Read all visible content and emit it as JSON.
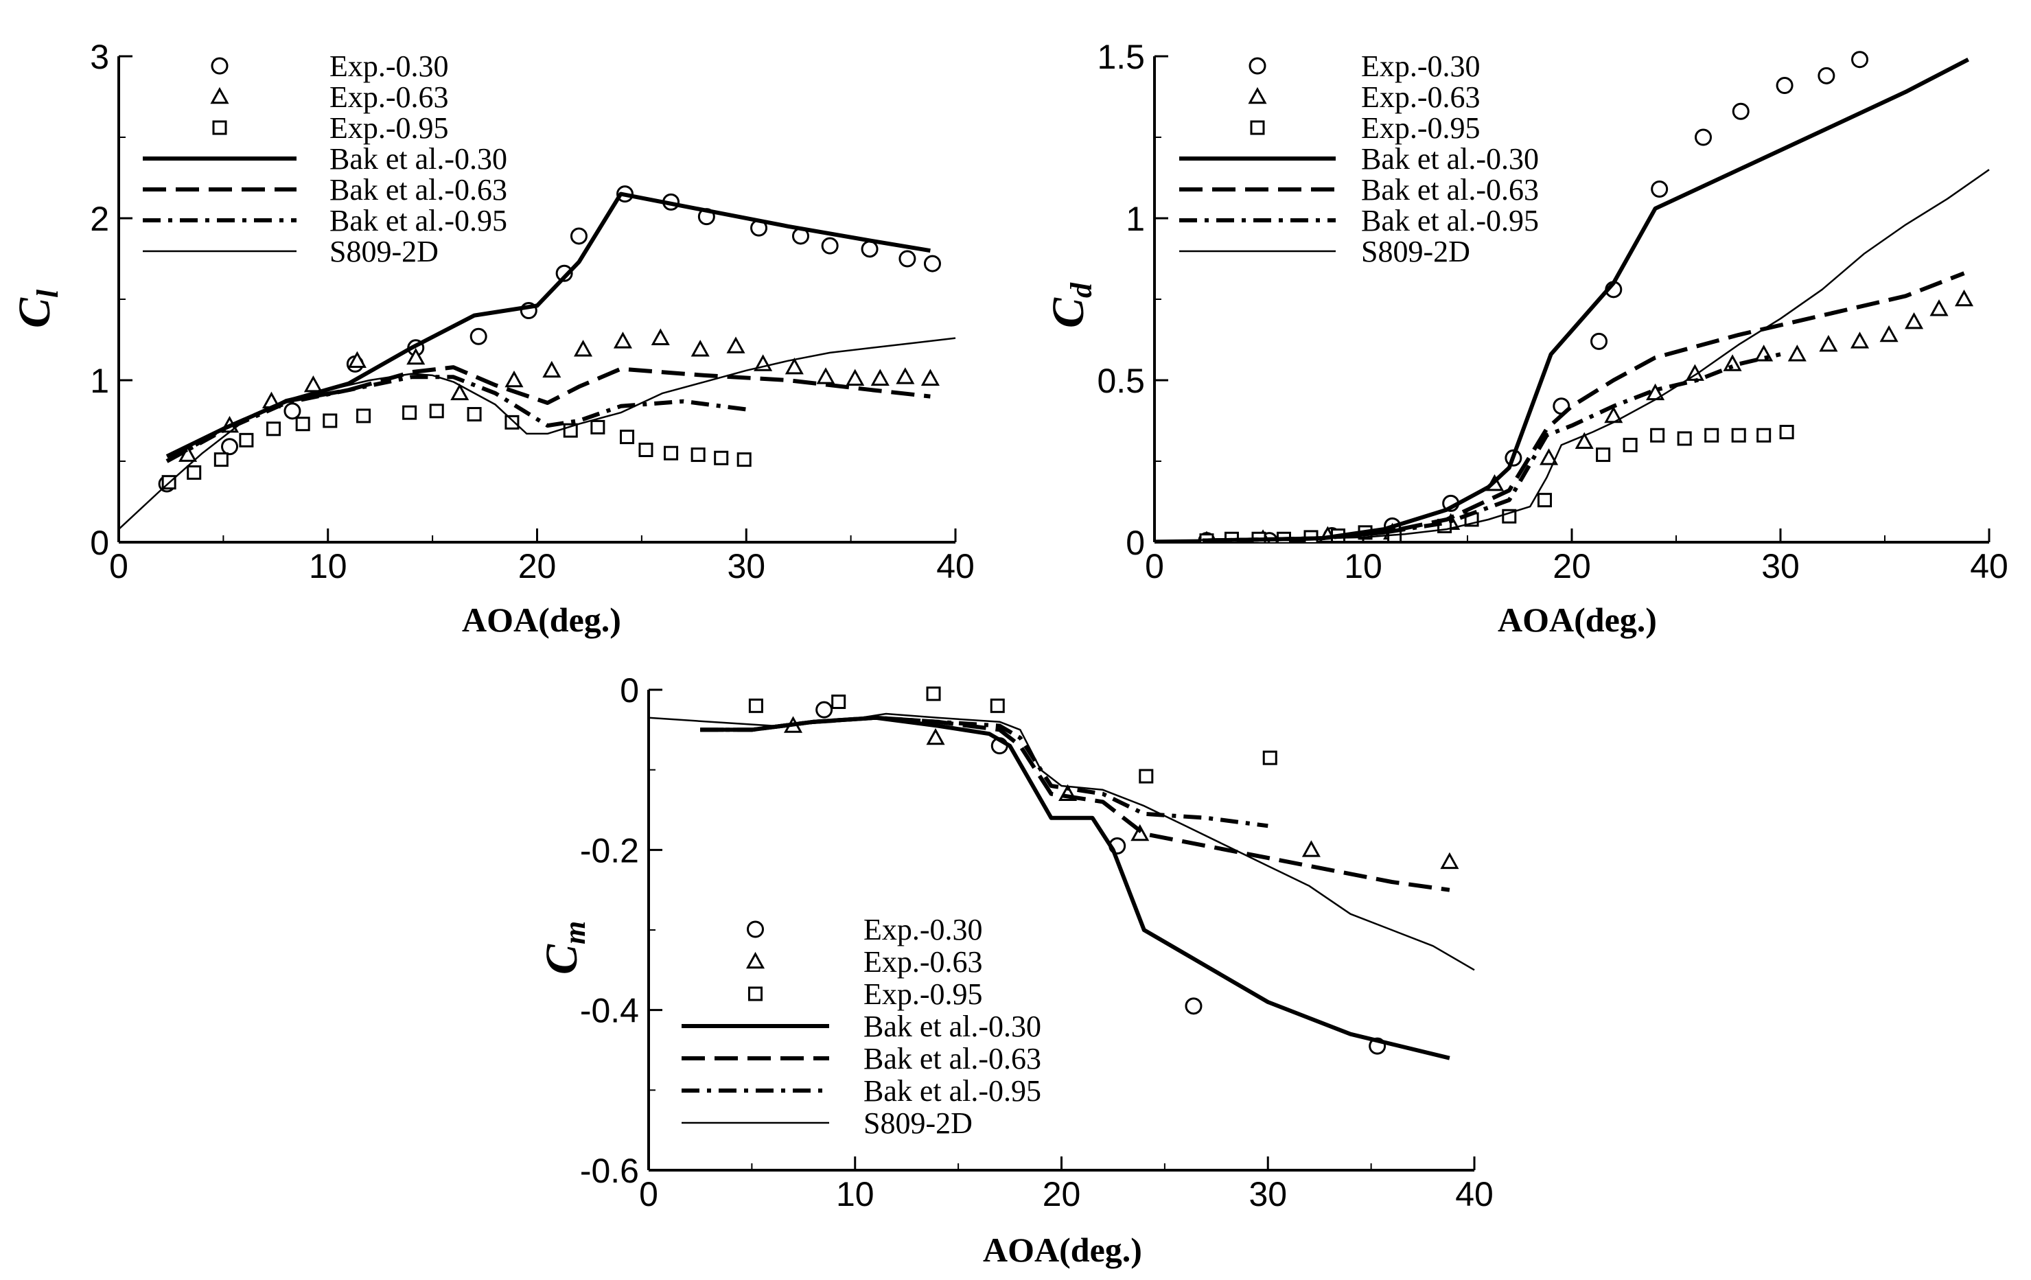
{
  "chart_data": [
    {
      "type": "line",
      "id": "cl",
      "ylabel_main": "C",
      "ylabel_sub": "l",
      "xlabel": "AOA(deg.)",
      "xlim": [
        0,
        40
      ],
      "ylim": [
        0,
        3
      ],
      "xticks": [
        "0",
        "10",
        "20",
        "30",
        "40"
      ],
      "xtick_values": [
        0,
        10,
        20,
        30,
        40
      ],
      "yticks": [
        "0",
        "1",
        "2",
        "3"
      ],
      "ytick_values": [
        0,
        1,
        2,
        3
      ],
      "legend_position": "top-left",
      "series": [
        {
          "name": "Exp.-0.30",
          "kind": "marker",
          "marker": "circle",
          "x": [
            2.3,
            5.3,
            8.3,
            11.3,
            14.2,
            17.2,
            19.6,
            21.3,
            22.0,
            24.2,
            26.4,
            28.1,
            30.6,
            32.6,
            34.0,
            35.9,
            37.7,
            38.9
          ],
          "y": [
            0.36,
            0.59,
            0.81,
            1.1,
            1.2,
            1.27,
            1.43,
            1.66,
            1.89,
            2.15,
            2.1,
            2.01,
            1.94,
            1.89,
            1.83,
            1.81,
            1.75,
            1.72
          ]
        },
        {
          "name": "Exp.-0.63",
          "kind": "marker",
          "marker": "triangle",
          "x": [
            3.3,
            5.3,
            7.3,
            9.3,
            11.4,
            14.2,
            16.3,
            18.9,
            20.7,
            22.2,
            24.1,
            25.9,
            27.8,
            29.5,
            30.8,
            32.3,
            33.8,
            35.2,
            36.4,
            37.6,
            38.8
          ],
          "y": [
            0.54,
            0.72,
            0.87,
            0.97,
            1.12,
            1.14,
            0.92,
            1.0,
            1.06,
            1.19,
            1.24,
            1.26,
            1.19,
            1.21,
            1.1,
            1.08,
            1.02,
            1.01,
            1.01,
            1.02,
            1.01
          ],
          "y_note": "approximate"
        },
        {
          "name": "Exp.-0.95",
          "kind": "marker",
          "marker": "square",
          "x": [
            2.4,
            3.6,
            4.9,
            6.1,
            7.4,
            8.8,
            10.1,
            11.7,
            13.9,
            15.2,
            17.0,
            18.8,
            21.6,
            22.9,
            24.3,
            25.2,
            26.4,
            27.7,
            28.8,
            29.9
          ],
          "y": [
            0.37,
            0.43,
            0.51,
            0.63,
            0.7,
            0.73,
            0.75,
            0.78,
            0.8,
            0.81,
            0.79,
            0.74,
            0.69,
            0.71,
            0.65,
            0.57,
            0.55,
            0.54,
            0.52,
            0.51
          ]
        },
        {
          "name": "Bak et al.-0.30",
          "kind": "line",
          "dash": "solid",
          "width": 6,
          "x": [
            2.3,
            5.0,
            8.0,
            11.0,
            14.0,
            17.0,
            20.0,
            22.0,
            24.0,
            28.0,
            32.0,
            36.0,
            38.8
          ],
          "y": [
            0.53,
            0.7,
            0.87,
            0.98,
            1.2,
            1.4,
            1.46,
            1.73,
            2.15,
            2.05,
            1.95,
            1.86,
            1.8
          ]
        },
        {
          "name": "Bak et al.-0.63",
          "kind": "line",
          "dash": "dash",
          "width": 6,
          "x": [
            2.3,
            5.0,
            8.0,
            11.0,
            14.0,
            16.0,
            18.0,
            20.5,
            22.0,
            24.0,
            28.0,
            32.0,
            36.0,
            38.8
          ],
          "y": [
            0.5,
            0.7,
            0.87,
            0.94,
            1.05,
            1.08,
            0.97,
            0.86,
            0.96,
            1.07,
            1.03,
            1.0,
            0.94,
            0.9
          ]
        },
        {
          "name": "Bak et al.-0.95",
          "kind": "line",
          "dash": "dashdot",
          "width": 6,
          "x": [
            2.3,
            5.0,
            8.0,
            11.0,
            14.0,
            16.0,
            18.0,
            20.5,
            22.0,
            24.0,
            27.0,
            30.0
          ],
          "y": [
            0.5,
            0.69,
            0.86,
            0.94,
            1.02,
            1.02,
            0.92,
            0.72,
            0.75,
            0.84,
            0.87,
            0.82
          ]
        },
        {
          "name": "S809-2D",
          "kind": "line",
          "dash": "solid",
          "width": 2.5,
          "x": [
            0.0,
            2.0,
            4.0,
            6.0,
            8.0,
            10.0,
            12.0,
            14.0,
            15.0,
            16.0,
            18.0,
            19.5,
            20.5,
            22.0,
            24.0,
            26.0,
            28.0,
            30.0,
            32.0,
            34.0,
            36.0,
            38.0,
            40.0
          ],
          "y": [
            0.08,
            0.32,
            0.55,
            0.75,
            0.88,
            0.94,
            1.0,
            1.04,
            1.03,
            0.99,
            0.85,
            0.67,
            0.67,
            0.73,
            0.8,
            0.92,
            0.99,
            1.06,
            1.12,
            1.17,
            1.2,
            1.23,
            1.26
          ]
        }
      ]
    },
    {
      "type": "line",
      "id": "cd",
      "ylabel_main": "C",
      "ylabel_sub": "d",
      "xlabel": "AOA(deg.)",
      "xlim": [
        0,
        40
      ],
      "ylim": [
        0,
        1.5
      ],
      "xticks": [
        "0",
        "10",
        "20",
        "30",
        "40"
      ],
      "xtick_values": [
        0,
        10,
        20,
        30,
        40
      ],
      "yticks": [
        "0",
        "0.5",
        "1",
        "1.5"
      ],
      "ytick_values": [
        0,
        0.5,
        1,
        1.5
      ],
      "legend_position": "top-left",
      "series": [
        {
          "name": "Exp.-0.30",
          "kind": "marker",
          "marker": "circle",
          "x": [
            2.5,
            5.5,
            8.5,
            11.4,
            14.2,
            17.2,
            19.5,
            21.3,
            22.0,
            24.2,
            26.3,
            28.1,
            30.2,
            32.2,
            33.8
          ],
          "y": [
            0.005,
            0.005,
            0.02,
            0.05,
            0.12,
            0.26,
            0.42,
            0.62,
            0.78,
            1.09,
            1.25,
            1.33,
            1.41,
            1.44,
            1.49
          ]
        },
        {
          "name": "Exp.-0.63",
          "kind": "marker",
          "marker": "triangle",
          "x": [
            2.5,
            5.2,
            8.3,
            11.4,
            14.2,
            16.3,
            18.9,
            20.6,
            22.0,
            24.0,
            25.9,
            27.7,
            29.2,
            30.8,
            32.3,
            33.8,
            35.2,
            36.4,
            37.6,
            38.8
          ],
          "y": [
            0.005,
            0.01,
            0.02,
            0.03,
            0.06,
            0.18,
            0.26,
            0.31,
            0.39,
            0.46,
            0.52,
            0.55,
            0.58,
            0.58,
            0.61,
            0.62,
            0.64,
            0.68,
            0.72,
            0.75
          ]
        },
        {
          "name": "Exp.-0.95",
          "kind": "marker",
          "marker": "square",
          "x": [
            2.5,
            3.7,
            5.0,
            6.2,
            7.5,
            8.8,
            10.1,
            11.5,
            13.9,
            15.2,
            17.0,
            18.7,
            21.5,
            22.8,
            24.1,
            25.4,
            26.7,
            28.0,
            29.2,
            30.3
          ],
          "y": [
            0.005,
            0.01,
            0.01,
            0.01,
            0.015,
            0.02,
            0.03,
            0.02,
            0.05,
            0.07,
            0.08,
            0.13,
            0.27,
            0.3,
            0.33,
            0.32,
            0.33,
            0.33,
            0.33,
            0.34
          ]
        },
        {
          "name": "Bak et al.-0.30",
          "kind": "line",
          "dash": "solid",
          "width": 6,
          "x": [
            2.3,
            5.0,
            8.0,
            11.0,
            14.0,
            16.0,
            17.0,
            19.0,
            22.0,
            24.0,
            28.0,
            32.0,
            36.0,
            39.0
          ],
          "y": [
            0.005,
            0.008,
            0.012,
            0.04,
            0.1,
            0.17,
            0.23,
            0.58,
            0.8,
            1.03,
            1.15,
            1.27,
            1.39,
            1.49
          ]
        },
        {
          "name": "Bak et al.-0.63",
          "kind": "line",
          "dash": "dash",
          "width": 6,
          "x": [
            2.3,
            5.0,
            8.0,
            11.0,
            14.0,
            17.0,
            18.8,
            20.0,
            22.0,
            24.0,
            28.0,
            32.0,
            36.0,
            38.8
          ],
          "y": [
            0.005,
            0.008,
            0.012,
            0.03,
            0.07,
            0.16,
            0.35,
            0.42,
            0.5,
            0.57,
            0.64,
            0.7,
            0.76,
            0.83
          ]
        },
        {
          "name": "Bak et al.-0.95",
          "kind": "line",
          "dash": "dashdot",
          "width": 6,
          "x": [
            2.3,
            5.0,
            8.0,
            11.0,
            14.0,
            17.0,
            18.8,
            20.0,
            22.0,
            24.0,
            26.0,
            28.0,
            30.0
          ],
          "y": [
            0.005,
            0.008,
            0.012,
            0.03,
            0.06,
            0.13,
            0.33,
            0.36,
            0.42,
            0.47,
            0.5,
            0.55,
            0.58
          ]
        },
        {
          "name": "S809-2D",
          "kind": "line",
          "dash": "solid",
          "width": 2.5,
          "x": [
            0.0,
            4.0,
            8.0,
            10.0,
            12.0,
            14.0,
            16.0,
            18.0,
            18.8,
            19.5,
            21.0,
            22.0,
            24.0,
            26.0,
            28.0,
            30.0,
            32.0,
            34.0,
            36.0,
            38.0,
            40.0
          ],
          "y": [
            0.005,
            0.008,
            0.012,
            0.015,
            0.025,
            0.04,
            0.07,
            0.11,
            0.2,
            0.3,
            0.34,
            0.37,
            0.44,
            0.52,
            0.61,
            0.69,
            0.78,
            0.89,
            0.98,
            1.06,
            1.15
          ]
        }
      ]
    },
    {
      "type": "line",
      "id": "cm",
      "ylabel_main": "C",
      "ylabel_sub": "m",
      "xlabel": "AOA(deg.)",
      "xlim": [
        0,
        40
      ],
      "ylim": [
        -0.6,
        0
      ],
      "xticks": [
        "0",
        "10",
        "20",
        "30",
        "40"
      ],
      "xtick_values": [
        0,
        10,
        20,
        30,
        40
      ],
      "yticks": [
        "-0.6",
        "-0.4",
        "-0.2",
        "0"
      ],
      "ytick_values": [
        -0.6,
        -0.4,
        -0.2,
        0
      ],
      "legend_position": "bottom-left",
      "series": [
        {
          "name": "Exp.-0.30",
          "kind": "marker",
          "marker": "circle",
          "x": [
            8.5,
            17.0,
            22.7,
            26.4,
            35.3
          ],
          "y": [
            -0.025,
            -0.07,
            -0.195,
            -0.395,
            -0.445
          ]
        },
        {
          "name": "Exp.-0.63",
          "kind": "marker",
          "marker": "triangle",
          "x": [
            7.0,
            13.9,
            20.3,
            23.8,
            32.1,
            38.8
          ],
          "y": [
            -0.045,
            -0.06,
            -0.13,
            -0.18,
            -0.2,
            -0.215
          ]
        },
        {
          "name": "Exp.-0.95",
          "kind": "marker",
          "marker": "square",
          "x": [
            5.2,
            9.2,
            13.8,
            16.9,
            24.1,
            30.1
          ],
          "y": [
            -0.02,
            -0.015,
            -0.005,
            -0.02,
            -0.108,
            -0.085
          ]
        },
        {
          "name": "Bak et al.-0.30",
          "kind": "line",
          "dash": "solid",
          "width": 6,
          "x": [
            2.5,
            5.0,
            8.0,
            11.0,
            14.0,
            16.5,
            17.5,
            19.5,
            21.5,
            22.5,
            24.0,
            26.0,
            30.0,
            34.0,
            38.8
          ],
          "y": [
            -0.05,
            -0.05,
            -0.04,
            -0.035,
            -0.045,
            -0.055,
            -0.07,
            -0.16,
            -0.16,
            -0.2,
            -0.3,
            -0.33,
            -0.39,
            -0.43,
            -0.46
          ]
        },
        {
          "name": "Bak et al.-0.63",
          "kind": "line",
          "dash": "dash",
          "width": 6,
          "x": [
            2.5,
            5.0,
            8.0,
            11.0,
            14.0,
            17.0,
            18.0,
            19.5,
            22.0,
            24.0,
            28.0,
            32.0,
            36.0,
            38.8
          ],
          "y": [
            -0.05,
            -0.05,
            -0.04,
            -0.035,
            -0.04,
            -0.05,
            -0.07,
            -0.13,
            -0.14,
            -0.18,
            -0.2,
            -0.22,
            -0.24,
            -0.25
          ]
        },
        {
          "name": "Bak et al.-0.95",
          "kind": "line",
          "dash": "dashdot",
          "width": 6,
          "x": [
            2.5,
            5.0,
            8.0,
            11.0,
            14.0,
            17.0,
            18.0,
            19.5,
            22.0,
            24.0,
            27.0,
            30.0
          ],
          "y": [
            -0.05,
            -0.05,
            -0.04,
            -0.035,
            -0.04,
            -0.045,
            -0.06,
            -0.12,
            -0.13,
            -0.155,
            -0.16,
            -0.17
          ]
        },
        {
          "name": "S809-2D",
          "kind": "line",
          "dash": "solid",
          "width": 2.5,
          "x": [
            0.0,
            3.0,
            6.0,
            9.0,
            11.5,
            14.0,
            17.0,
            18.0,
            19.0,
            20.0,
            22.0,
            24.0,
            26.0,
            28.0,
            30.0,
            32.0,
            34.0,
            36.0,
            38.0,
            40.0
          ],
          "y": [
            -0.035,
            -0.04,
            -0.045,
            -0.04,
            -0.03,
            -0.035,
            -0.04,
            -0.05,
            -0.1,
            -0.12,
            -0.125,
            -0.145,
            -0.17,
            -0.195,
            -0.22,
            -0.245,
            -0.28,
            -0.3,
            -0.32,
            -0.35
          ]
        }
      ]
    }
  ]
}
